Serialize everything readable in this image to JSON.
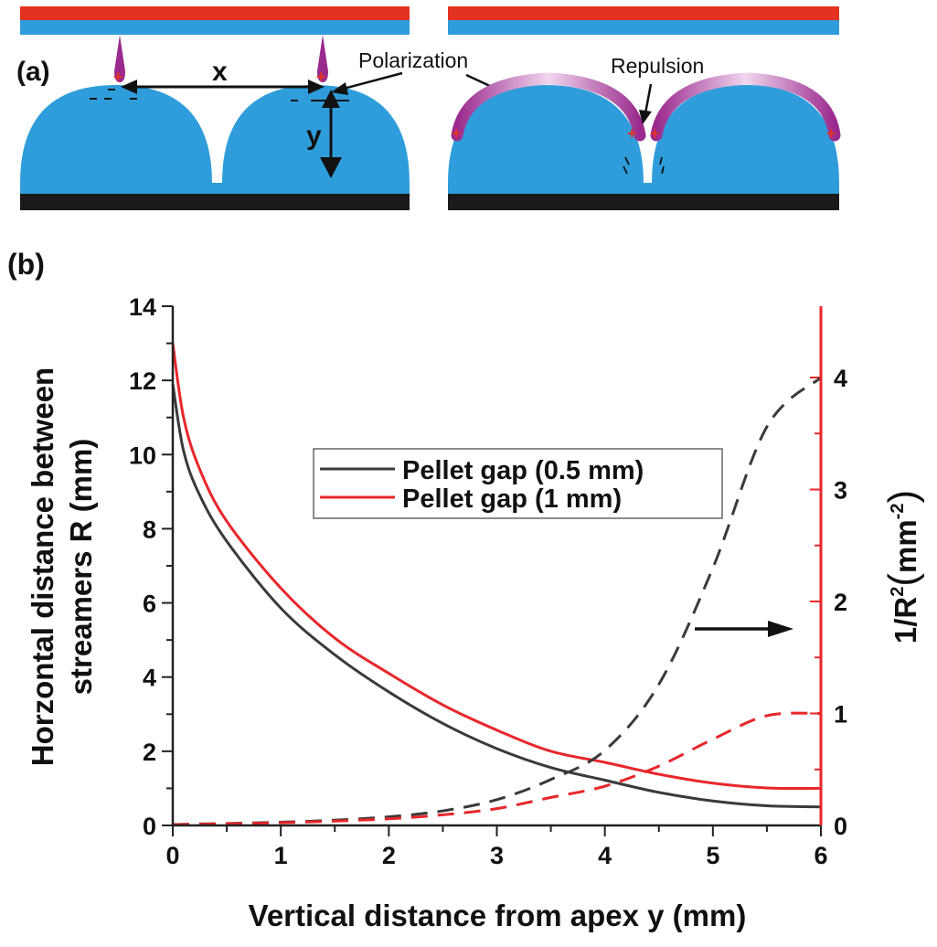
{
  "diagram": {
    "panel_label": "(a)",
    "x_label": "x",
    "y_label": "y",
    "polarization_label": "Polarization",
    "repulsion_label": "Repulsion",
    "colors": {
      "electrode_top": "#e3321f",
      "dielectric": "#2f9ddb",
      "ground": "#1a1a1a",
      "streamer": "#9a2a8e",
      "charge": "#e3321f"
    }
  },
  "chart_panel_label": "(b)",
  "chart_data": {
    "type": "line",
    "xlabel": "Vertical distance from apex y (mm)",
    "ylabel": "Horzontal distance between streamers R (mm)",
    "ylabel_line1": "Horzontal distance between",
    "ylabel_line2": "streamers R (mm)",
    "y2label": "1/R",
    "y2label_sup": "2",
    "y2label_unit": "mm",
    "y2label_unit_sup": "-2",
    "xlim": [
      0,
      6
    ],
    "ylim": [
      0,
      14
    ],
    "y2lim": [
      0,
      4.4
    ],
    "xticks": [
      "0",
      "1",
      "2",
      "3",
      "4",
      "5",
      "6"
    ],
    "yticks": [
      "0",
      "2",
      "4",
      "6",
      "8",
      "10",
      "12",
      "14"
    ],
    "y2ticks": [
      "0",
      "1",
      "2",
      "3",
      "4"
    ],
    "grid": false,
    "legend_position": "center",
    "right_axis_color": "#e8262a",
    "x": [
      0,
      0.1,
      0.25,
      0.5,
      1,
      1.5,
      2,
      2.5,
      3,
      3.5,
      4,
      4.5,
      5,
      5.5,
      6
    ],
    "series": [
      {
        "name": "Pellet gap (0.5 mm)",
        "axis": "left",
        "style": "solid",
        "color": "#3a3a3a",
        "values": [
          11.9,
          10.1,
          8.9,
          7.66,
          5.86,
          4.6,
          3.6,
          2.75,
          2.07,
          1.56,
          1.22,
          0.89,
          0.66,
          0.53,
          0.5
        ]
      },
      {
        "name": "Pellet gap (1 mm)",
        "axis": "left",
        "style": "solid",
        "color": "#e8262a",
        "values": [
          13.0,
          11.0,
          9.6,
          8.2,
          6.4,
          5.05,
          4.1,
          3.25,
          2.57,
          2.0,
          1.7,
          1.38,
          1.14,
          1.01,
          1.0
        ]
      },
      {
        "axis": "right",
        "style": "dashed",
        "color": "#3a3a3a",
        "values": [
          0.007,
          0.01,
          0.013,
          0.017,
          0.029,
          0.047,
          0.077,
          0.13,
          0.23,
          0.41,
          0.67,
          1.26,
          2.3,
          3.56,
          4.0
        ]
      },
      {
        "axis": "right",
        "style": "dashed",
        "color": "#e8262a",
        "values": [
          0.006,
          0.008,
          0.011,
          0.015,
          0.024,
          0.039,
          0.059,
          0.095,
          0.15,
          0.25,
          0.35,
          0.53,
          0.77,
          0.98,
          1.0
        ]
      }
    ],
    "annotation": "arrow pointing to right axis"
  }
}
